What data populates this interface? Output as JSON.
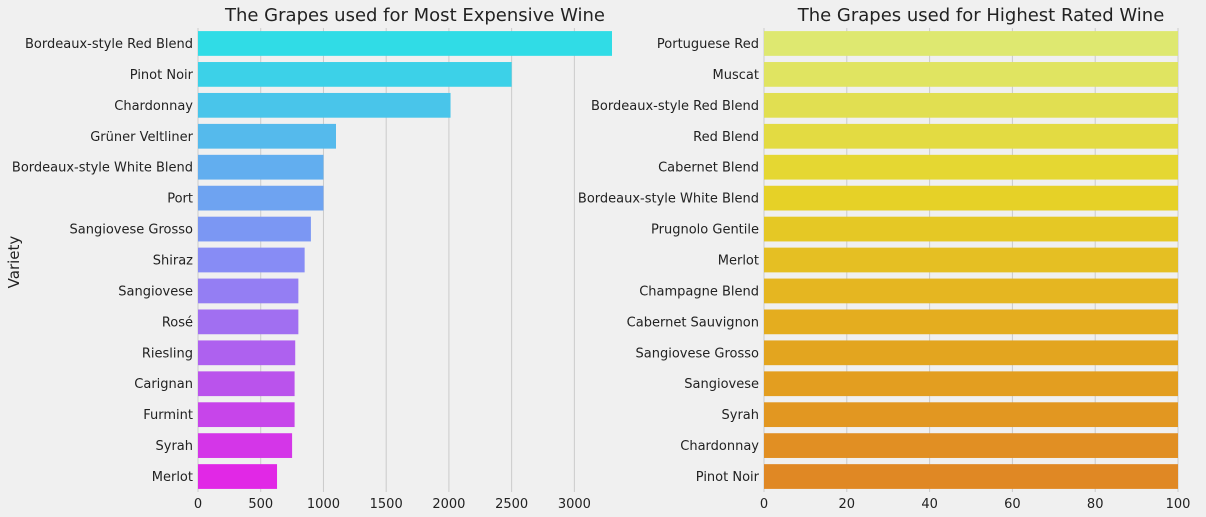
{
  "chart_data": [
    {
      "type": "bar",
      "orientation": "horizontal",
      "title": "The Grapes used for Most Expensive Wine",
      "xlabel": "",
      "ylabel": "Variety",
      "xlim": [
        0,
        3300
      ],
      "xticks": [
        0,
        500,
        1000,
        1500,
        2000,
        2500,
        3000
      ],
      "grid": "vertical",
      "palette": "cool",
      "categories": [
        "Bordeaux-style Red Blend",
        "Pinot Noir",
        "Chardonnay",
        "Grüner Veltliner",
        "Bordeaux-style White Blend",
        "Port",
        "Sangiovese Grosso",
        "Shiraz",
        "Sangiovese",
        "Rosé",
        "Riesling",
        "Carignan",
        "Furmint",
        "Syrah",
        "Merlot"
      ],
      "values": [
        3300,
        2500,
        2013,
        1100,
        1000,
        1000,
        900,
        850,
        800,
        800,
        775,
        770,
        770,
        750,
        630
      ]
    },
    {
      "type": "bar",
      "orientation": "horizontal",
      "title": "The Grapes used for Highest Rated Wine",
      "xlabel": "",
      "ylabel": "",
      "xlim": [
        0,
        100
      ],
      "xticks": [
        0,
        20,
        40,
        60,
        80,
        100
      ],
      "grid": "vertical",
      "palette": "Wistia",
      "categories": [
        "Portuguese Red",
        "Muscat",
        "Bordeaux-style Red Blend",
        "Red Blend",
        "Cabernet Blend",
        "Bordeaux-style White Blend",
        "Prugnolo Gentile",
        "Merlot",
        "Champagne Blend",
        "Cabernet Sauvignon",
        "Sangiovese Grosso",
        "Sangiovese",
        "Syrah",
        "Chardonnay",
        "Pinot Noir"
      ],
      "values": [
        100,
        100,
        100,
        100,
        100,
        100,
        100,
        100,
        100,
        100,
        100,
        100,
        100,
        100,
        100
      ]
    }
  ]
}
